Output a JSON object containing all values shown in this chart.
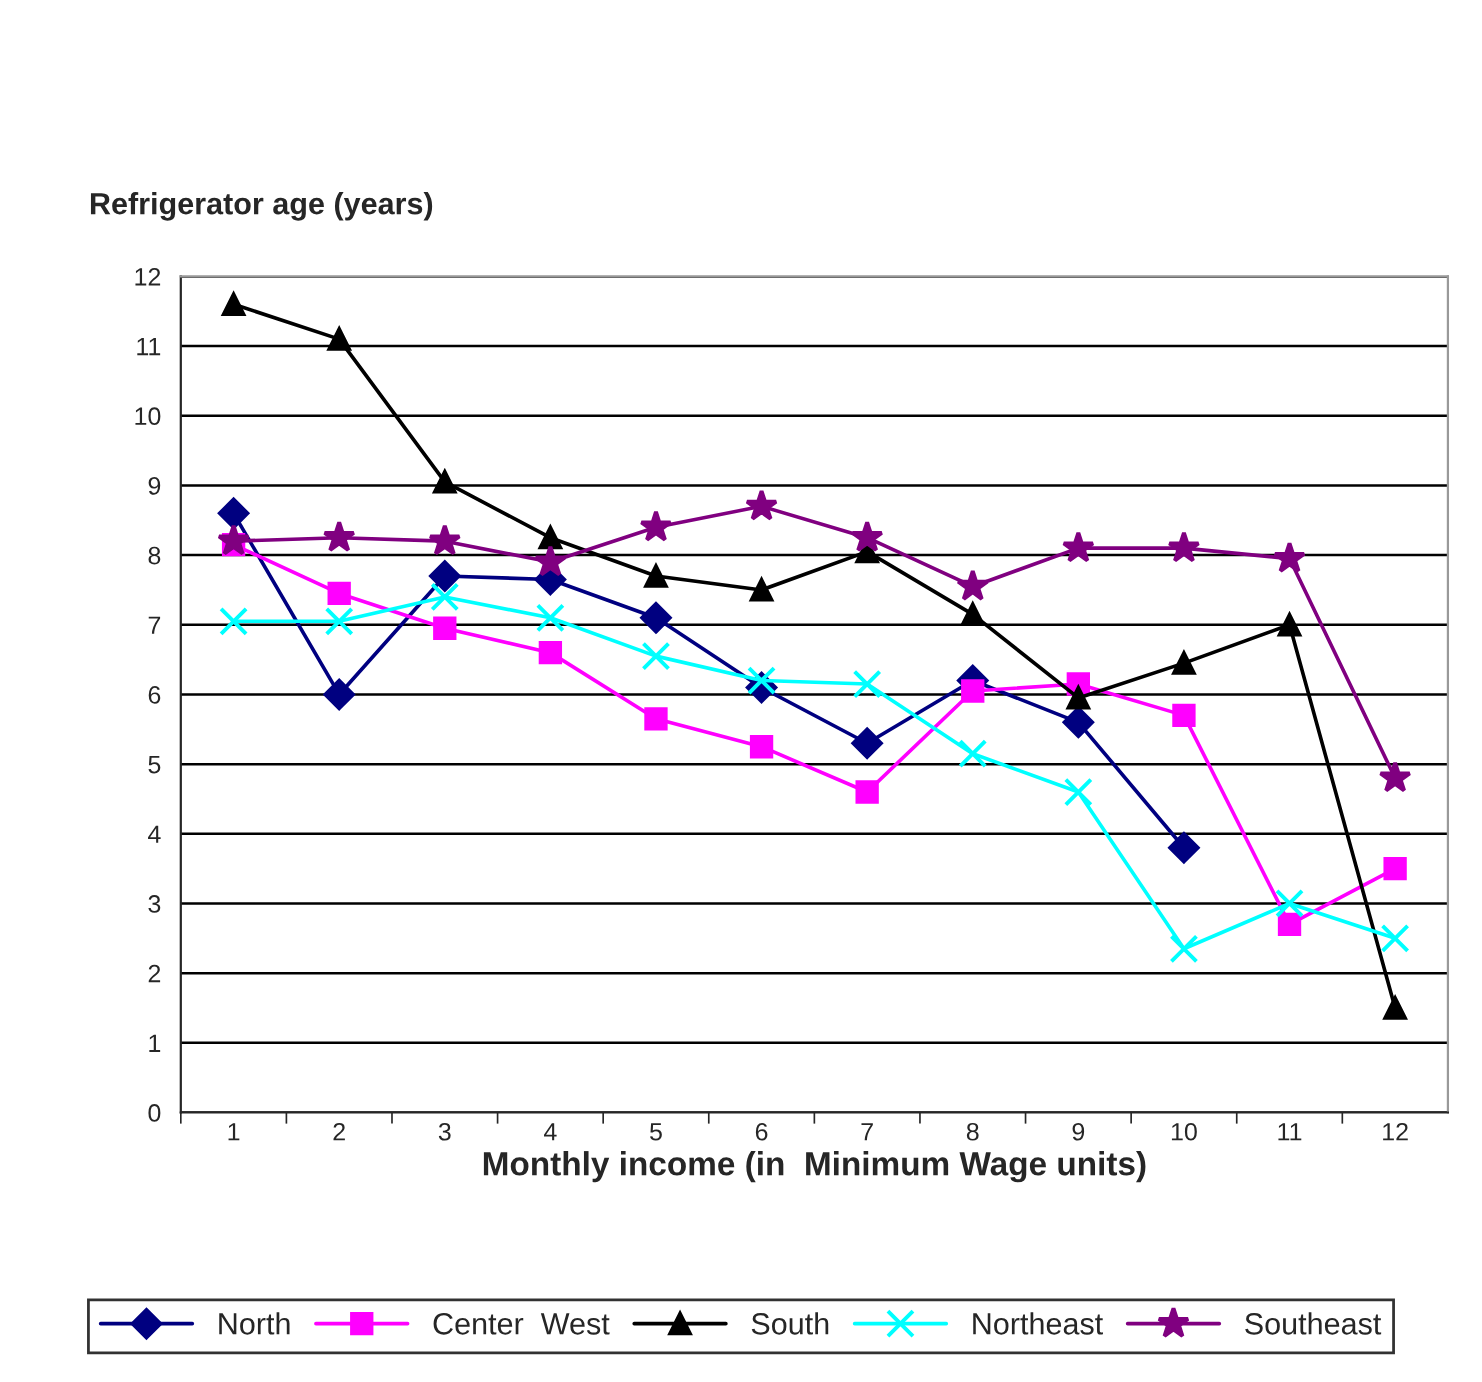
{
  "chart_data": {
    "type": "line",
    "ylabel": "Refrigerator age (years)",
    "xlabel": "Monthly income (in  Minimum Wage units)",
    "categories": [
      "1",
      "2",
      "3",
      "4",
      "5",
      "6",
      "7",
      "8",
      "9",
      "10",
      "11",
      "12"
    ],
    "series": [
      {
        "name": "North",
        "color": "#000080",
        "marker": "diamond",
        "values": [
          8.6,
          6.0,
          7.7,
          7.65,
          7.1,
          6.1,
          5.3,
          6.2,
          5.6,
          3.8,
          null,
          null
        ]
      },
      {
        "name": "Center  West",
        "color": "#ff00ff",
        "marker": "square",
        "values": [
          8.15,
          7.45,
          6.95,
          6.6,
          5.65,
          5.25,
          4.6,
          6.05,
          6.15,
          5.7,
          2.7,
          3.5
        ]
      },
      {
        "name": "South",
        "color": "#000000",
        "marker": "triangle",
        "values": [
          11.6,
          11.1,
          9.05,
          8.25,
          7.7,
          7.5,
          8.05,
          7.15,
          5.95,
          6.45,
          7.0,
          1.5
        ]
      },
      {
        "name": "Northeast",
        "color": "#00ffff",
        "marker": "cross",
        "values": [
          7.05,
          7.05,
          7.4,
          7.1,
          6.55,
          6.2,
          6.15,
          5.15,
          4.6,
          2.35,
          3.0,
          2.5
        ]
      },
      {
        "name": "Southeast",
        "color": "#800080",
        "marker": "star",
        "values": [
          8.2,
          8.25,
          8.2,
          7.9,
          8.4,
          8.7,
          8.25,
          7.55,
          8.1,
          8.1,
          7.95,
          4.8
        ]
      }
    ],
    "ylim": [
      0,
      12
    ],
    "yticks": [
      0,
      1,
      2,
      3,
      4,
      5,
      6,
      7,
      8,
      9,
      10,
      11,
      12
    ],
    "grid": "y",
    "legend": "bottom",
    "line_style": "solid"
  }
}
